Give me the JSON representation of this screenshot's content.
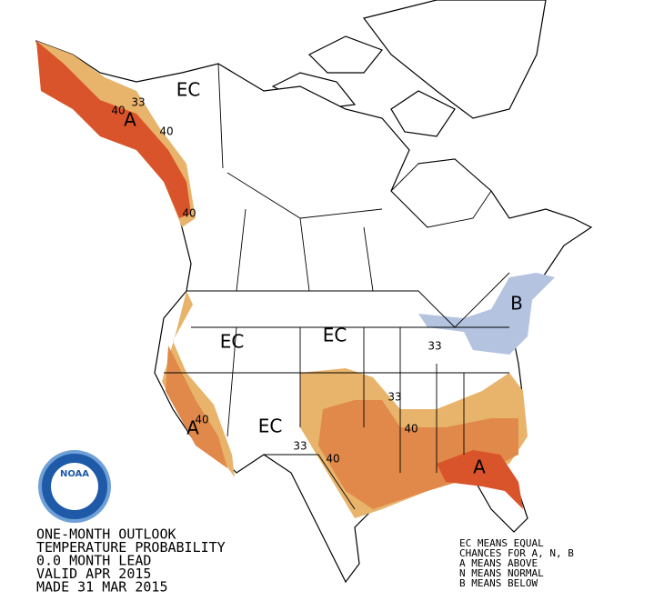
{
  "map": {
    "labels": [
      "EC",
      "EC",
      "EC",
      "EC",
      "A",
      "A",
      "A",
      "B",
      "33",
      "40",
      "40",
      "40",
      "40",
      "33",
      "40",
      "33",
      "40",
      "33"
    ],
    "logo": "NOAA"
  },
  "title_lines": [
    "ONE-MONTH OUTLOOK",
    "TEMPERATURE PROBABILITY",
    "0.0 MONTH LEAD",
    "VALID APR 2015",
    "MADE 31 MAR 2015"
  ],
  "legend_lines": [
    "EC MEANS EQUAL",
    "CHANCES FOR A, N, B",
    "A MEANS ABOVE",
    "N MEANS NORMAL",
    "B MEANS BELOW"
  ]
}
